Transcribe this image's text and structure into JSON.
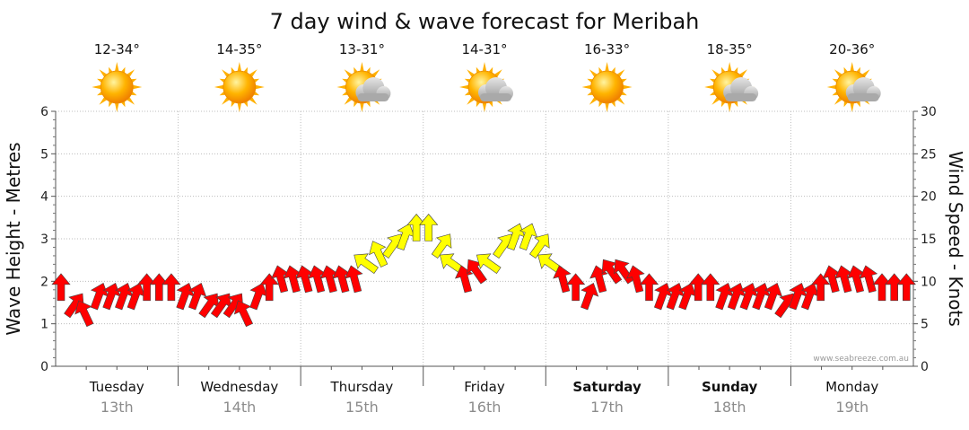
{
  "chart_data": {
    "type": "line",
    "title": "7 day wind & wave forecast for Meribah",
    "ylabel_left": "Wave Height - Metres",
    "ylabel_right": "Wind Speed - Knots",
    "ylim_left": [
      0,
      6
    ],
    "ylim_right": [
      0,
      30
    ],
    "yticks_left": [
      "0",
      "1",
      "2",
      "3",
      "4",
      "5",
      "6"
    ],
    "yticks_right": [
      "0",
      "5",
      "10",
      "15",
      "20",
      "25",
      "30"
    ],
    "grid": true,
    "watermark": "www.seabreeze.com.au",
    "days": [
      {
        "name": "Tuesday",
        "date": "13th",
        "temp": "12-34°",
        "icon": "sun-icon",
        "bold": false
      },
      {
        "name": "Wednesday",
        "date": "14th",
        "temp": "14-35°",
        "icon": "sun-icon",
        "bold": false
      },
      {
        "name": "Thursday",
        "date": "15th",
        "temp": "13-31°",
        "icon": "sun-cloud-icon",
        "bold": false
      },
      {
        "name": "Friday",
        "date": "16th",
        "temp": "14-31°",
        "icon": "sun-cloud-icon",
        "bold": false
      },
      {
        "name": "Saturday",
        "date": "17th",
        "temp": "16-33°",
        "icon": "sun-icon",
        "bold": true
      },
      {
        "name": "Sunday",
        "date": "18th",
        "temp": "18-35°",
        "icon": "sun-cloud-icon",
        "bold": true
      },
      {
        "name": "Monday",
        "date": "19th",
        "temp": "20-36°",
        "icon": "sun-cloud-icon",
        "bold": false
      }
    ],
    "series": [
      {
        "kind": "wind",
        "unit": "knots",
        "x_days": [
          0.0,
          0.1,
          0.2,
          0.3,
          0.4,
          0.5,
          0.6,
          0.7,
          0.8,
          0.9,
          1.0,
          1.1,
          1.2,
          1.3,
          1.4,
          1.5,
          1.6,
          1.7,
          1.8,
          1.9,
          2.0,
          2.1,
          2.2,
          2.3,
          2.4,
          2.5,
          2.6,
          2.7,
          2.8,
          2.9,
          3.0,
          3.1,
          3.2,
          3.3,
          3.4,
          3.5,
          3.6,
          3.7,
          3.8,
          3.9,
          4.0,
          4.1,
          4.2,
          4.3,
          4.4,
          4.5,
          4.6,
          4.7,
          4.8,
          4.9,
          5.0,
          5.1,
          5.2,
          5.3,
          5.4,
          5.5,
          5.6,
          5.7,
          5.8,
          5.9,
          6.0,
          6.1,
          6.2,
          6.3,
          6.4,
          6.5,
          6.6,
          6.7,
          6.8,
          6.9
        ],
        "speed_kn": [
          9,
          7,
          6,
          8,
          8,
          8,
          8,
          9,
          9,
          9,
          8,
          8,
          7,
          7,
          7,
          6,
          8,
          9,
          10,
          10,
          10,
          10,
          10,
          10,
          10,
          12,
          13,
          14,
          15,
          16,
          16,
          14,
          12,
          10,
          11,
          12,
          14,
          15,
          15,
          14,
          12,
          10,
          9,
          8,
          10,
          11,
          11,
          10,
          9,
          8,
          8,
          8,
          9,
          9,
          8,
          8,
          8,
          8,
          8,
          7,
          8,
          8,
          9,
          10,
          10,
          10,
          10,
          9,
          9,
          9
        ],
        "color_rule": {
          "red_below_kn": 12,
          "red": "#ff0000",
          "yellow": "#ffff00"
        }
      }
    ]
  }
}
